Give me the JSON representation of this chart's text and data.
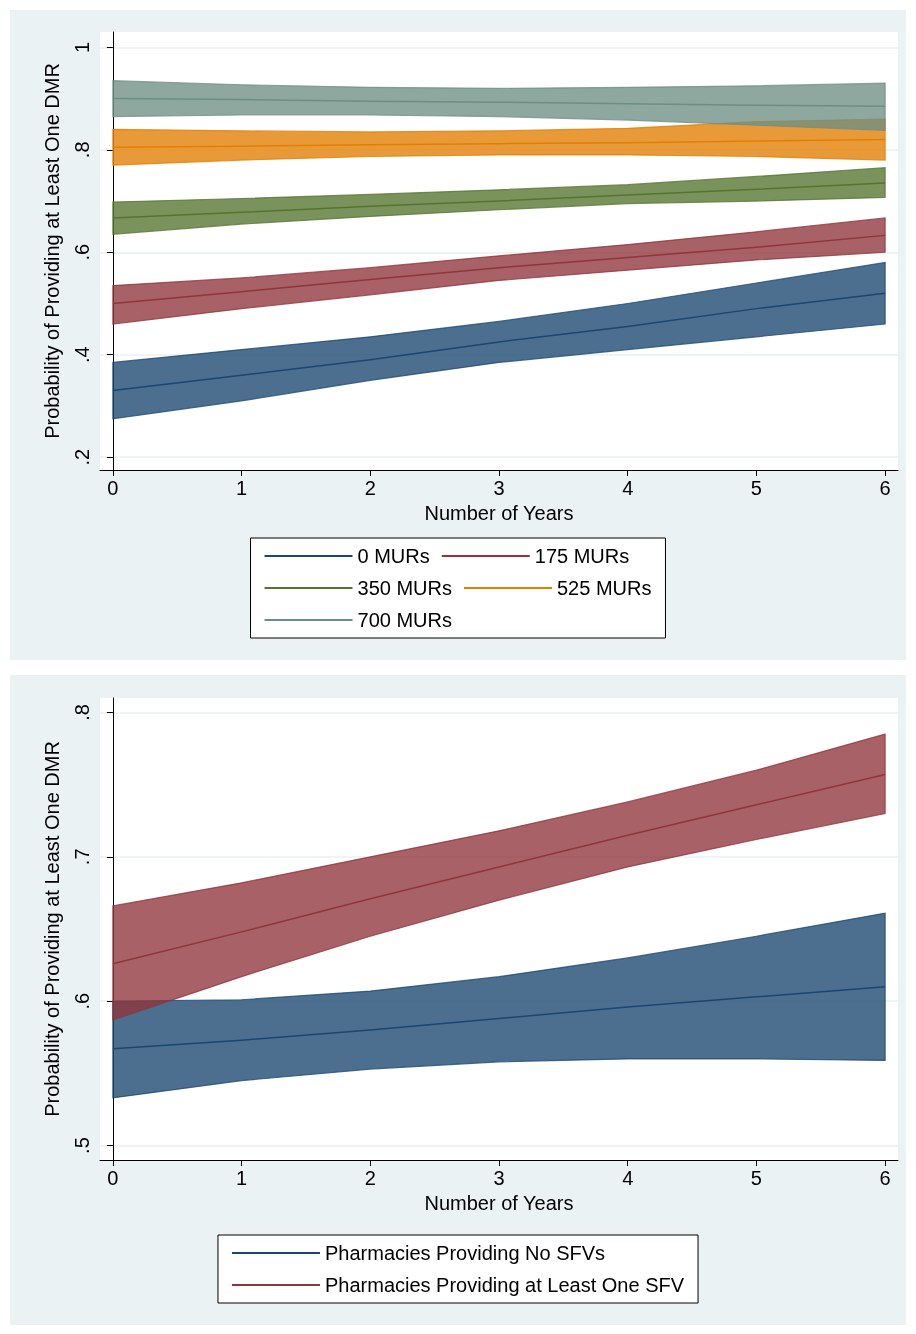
{
  "chart_data": [
    {
      "type": "line",
      "xlabel": "Number of Years",
      "ylabel": "Probability of Providing at Least One DMR",
      "x": [
        0,
        1,
        2,
        3,
        4,
        5,
        6
      ],
      "xlim": [
        -0.1,
        6.1
      ],
      "xticks": [
        0,
        1,
        2,
        3,
        4,
        5,
        6
      ],
      "ylim": [
        0.175,
        1.03
      ],
      "yticks": [
        {
          "value": 0.2,
          "label": ".2"
        },
        {
          "value": 0.4,
          "label": ".4"
        },
        {
          "value": 0.6,
          "label": ".6"
        },
        {
          "value": 0.8,
          "label": ".8"
        },
        1
      ],
      "grid": "y",
      "legend": "bottom",
      "marker": "none",
      "series": [
        {
          "name": "0 MURs",
          "color": "#1a476f",
          "values": [
            0.33,
            0.36,
            0.39,
            0.425,
            0.455,
            0.49,
            0.52
          ],
          "lower": [
            0.275,
            0.31,
            0.35,
            0.385,
            0.41,
            0.435,
            0.46
          ],
          "upper": [
            0.385,
            0.41,
            0.435,
            0.465,
            0.5,
            0.54,
            0.58
          ]
        },
        {
          "name": "175 MURs",
          "color": "#90353b",
          "values": [
            0.5,
            0.523,
            0.547,
            0.57,
            0.59,
            0.61,
            0.633
          ],
          "lower": [
            0.46,
            0.49,
            0.517,
            0.545,
            0.565,
            0.585,
            0.6
          ],
          "upper": [
            0.535,
            0.55,
            0.57,
            0.593,
            0.615,
            0.64,
            0.667
          ]
        },
        {
          "name": "350 MURs",
          "color": "#55752f",
          "values": [
            0.667,
            0.678,
            0.69,
            0.7,
            0.712,
            0.723,
            0.735
          ],
          "lower": [
            0.635,
            0.655,
            0.67,
            0.683,
            0.695,
            0.7,
            0.707
          ],
          "upper": [
            0.698,
            0.705,
            0.713,
            0.722,
            0.732,
            0.748,
            0.765
          ]
        },
        {
          "name": "525 MURs",
          "color": "#e37e00",
          "values": [
            0.805,
            0.807,
            0.81,
            0.812,
            0.814,
            0.817,
            0.82
          ],
          "lower": [
            0.77,
            0.78,
            0.787,
            0.79,
            0.79,
            0.787,
            0.78
          ],
          "upper": [
            0.84,
            0.837,
            0.835,
            0.837,
            0.842,
            0.855,
            0.86
          ]
        },
        {
          "name": "700 MURs",
          "color": "#6e8e84",
          "values": [
            0.9,
            0.898,
            0.895,
            0.893,
            0.89,
            0.887,
            0.885
          ],
          "lower": [
            0.865,
            0.868,
            0.868,
            0.865,
            0.858,
            0.848,
            0.838
          ],
          "upper": [
            0.935,
            0.927,
            0.922,
            0.92,
            0.922,
            0.925,
            0.93
          ]
        }
      ]
    },
    {
      "type": "line",
      "xlabel": "Number of Years",
      "ylabel": "Probability of Providing at Least One DMR",
      "x": [
        0,
        1,
        2,
        3,
        4,
        5,
        6
      ],
      "xlim": [
        -0.1,
        6.1
      ],
      "xticks": [
        0,
        1,
        2,
        3,
        4,
        5,
        6
      ],
      "ylim": [
        0.49,
        0.81
      ],
      "yticks": [
        {
          "value": 0.5,
          "label": ".5"
        },
        {
          "value": 0.6,
          "label": ".6"
        },
        {
          "value": 0.7,
          "label": ".7"
        },
        {
          "value": 0.8,
          "label": ".8"
        }
      ],
      "grid": "y",
      "legend": "bottom",
      "marker": "none",
      "series": [
        {
          "name": "Pharmacies Providing No SFVs",
          "color": "#1a476f",
          "values": [
            0.567,
            0.573,
            0.58,
            0.588,
            0.596,
            0.603,
            0.61
          ],
          "lower": [
            0.533,
            0.545,
            0.553,
            0.558,
            0.56,
            0.56,
            0.559
          ],
          "upper": [
            0.6,
            0.601,
            0.607,
            0.617,
            0.63,
            0.645,
            0.661
          ]
        },
        {
          "name": "Pharmacies Providing at Least One SFV",
          "color": "#90353b",
          "values": [
            0.626,
            0.648,
            0.671,
            0.693,
            0.715,
            0.736,
            0.757
          ],
          "lower": [
            0.587,
            0.617,
            0.645,
            0.67,
            0.693,
            0.712,
            0.73
          ],
          "upper": [
            0.666,
            0.682,
            0.7,
            0.718,
            0.738,
            0.76,
            0.785
          ]
        }
      ]
    }
  ]
}
